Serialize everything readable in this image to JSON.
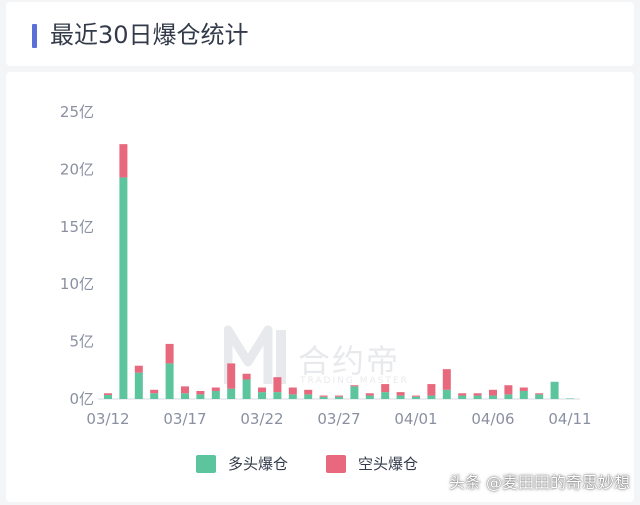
{
  "header": {
    "title": "最近30日爆仓统计"
  },
  "colors": {
    "long": "#5cc59e",
    "short": "#e8697d",
    "accent": "#5a6fd8",
    "axis": "#d8dbe2"
  },
  "watermark": {
    "brand": "合约帝",
    "sub": "TRADING MASTER"
  },
  "credit": "头条 @麦田田的奇思妙想",
  "chart_data": {
    "type": "bar",
    "stacked": true,
    "categories": [
      "03/12",
      "03/13",
      "03/14",
      "03/15",
      "03/16",
      "03/17",
      "03/18",
      "03/19",
      "03/20",
      "03/21",
      "03/22",
      "03/23",
      "03/24",
      "03/25",
      "03/26",
      "03/27",
      "03/28",
      "03/29",
      "03/30",
      "03/31",
      "04/01",
      "04/02",
      "04/03",
      "04/04",
      "04/05",
      "04/06",
      "04/07",
      "04/08",
      "04/09",
      "04/10",
      "04/11"
    ],
    "x_tick_labels": [
      "03/12",
      "03/17",
      "03/22",
      "03/27",
      "04/01",
      "04/06",
      "04/11"
    ],
    "y_tick_labels": [
      "0亿",
      "5亿",
      "10亿",
      "15亿",
      "20亿",
      "25亿"
    ],
    "ylim": [
      0,
      25
    ],
    "series": [
      {
        "name": "多头爆仓",
        "values": [
          0.35,
          19.3,
          2.3,
          0.5,
          3.1,
          0.5,
          0.4,
          0.7,
          0.9,
          1.7,
          0.6,
          0.6,
          0.4,
          0.4,
          0.2,
          0.2,
          1.1,
          0.3,
          0.6,
          0.3,
          0.2,
          0.3,
          0.8,
          0.3,
          0.3,
          0.3,
          0.4,
          0.7,
          0.4,
          1.5,
          0.05
        ]
      },
      {
        "name": "空头爆仓",
        "values": [
          0.15,
          2.9,
          0.6,
          0.3,
          1.7,
          0.6,
          0.3,
          0.3,
          2.2,
          0.5,
          0.4,
          1.3,
          0.6,
          0.4,
          0.1,
          0.1,
          0.1,
          0.2,
          0.7,
          0.3,
          0.1,
          1.0,
          1.8,
          0.2,
          0.2,
          0.5,
          0.8,
          0.3,
          0.1,
          0.0,
          0.0
        ]
      }
    ],
    "legend": "bottom",
    "grid": false
  }
}
